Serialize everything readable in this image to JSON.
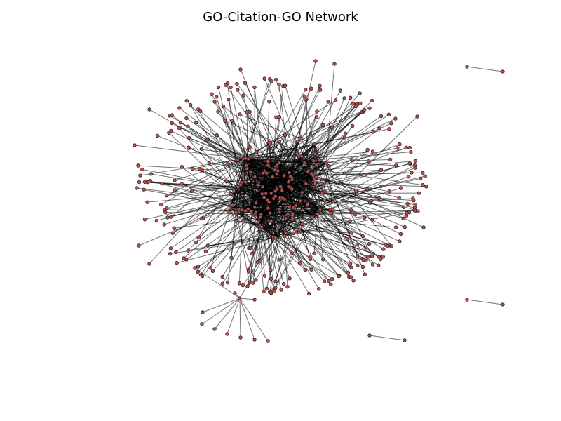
{
  "figure": {
    "title": "GO-Citation-GO Network"
  },
  "style": {
    "node_fill": "#c0504d",
    "node_stroke": "#222222",
    "edge_color": "#000000",
    "background": "#ffffff"
  },
  "network": {
    "layout": "force-directed",
    "components": [
      {
        "name": "main-cluster"
      },
      {
        "name": "star-cluster",
        "leaves": 7
      },
      {
        "name": "isolated-edge-1"
      },
      {
        "name": "isolated-edge-2"
      },
      {
        "name": "isolated-edge-3"
      }
    ]
  }
}
